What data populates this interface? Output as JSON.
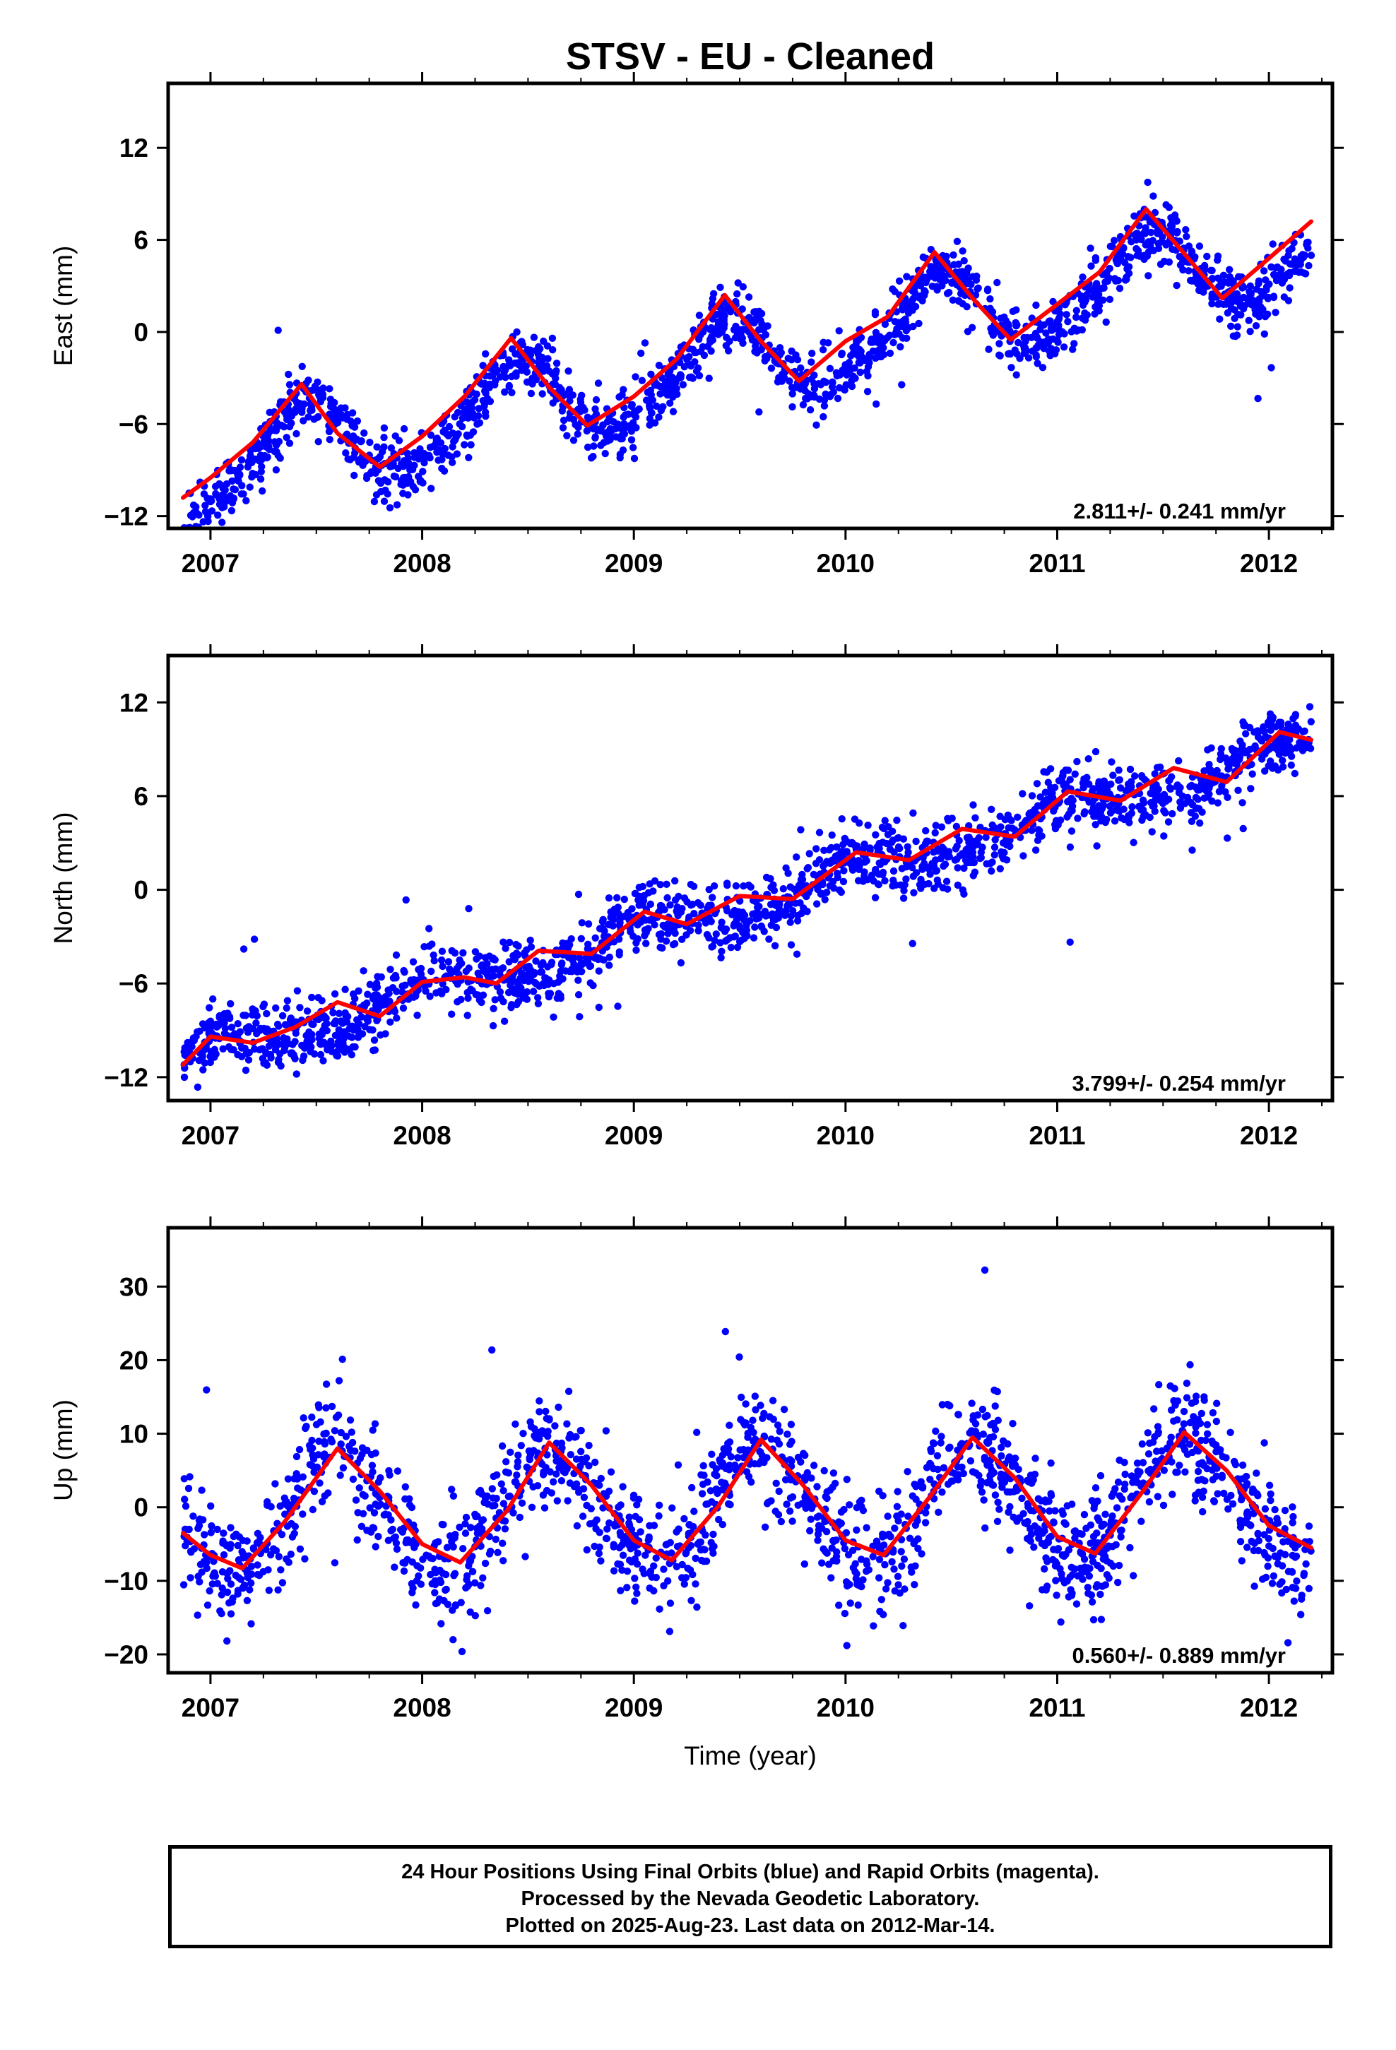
{
  "title": "STSV  - EU - Cleaned",
  "footer": {
    "line1": "24 Hour Positions Using Final Orbits (blue) and Rapid Orbits (magenta).",
    "line2": "Processed by the Nevada Geodetic Laboratory.",
    "line3": "Plotted on 2025-Aug-23. Last data on 2012-Mar-14."
  },
  "colors": {
    "points": "#0000ff",
    "fit": "#ff0000",
    "frame": "#000000"
  },
  "chart_data": [
    {
      "type": "scatter",
      "ylabel": "East (mm)",
      "xlabel": "",
      "xlim": [
        2006.8,
        2012.3
      ],
      "ylim": [
        -12.8,
        16.2
      ],
      "x_ticks": [
        2007,
        2008,
        2009,
        2010,
        2011,
        2012
      ],
      "y_ticks": [
        -12,
        -6,
        0,
        6,
        12
      ],
      "rate_label": "2.811+/- 0.241 mm/yr",
      "series": [
        {
          "kind": "points",
          "start": 2006.87,
          "end": 2012.2,
          "trend_mm_per_yr": 2.811,
          "offset_at_2010": -0.6,
          "annual_amp": 2.8,
          "annual_peak": 0.43,
          "semiannual_amp": 0.4,
          "scatter_sd": 1.0
        },
        {
          "kind": "fit",
          "x": [
            2006.87,
            2007.0,
            2007.2,
            2007.43,
            2007.6,
            2007.8,
            2008.0,
            2008.2,
            2008.42,
            2008.6,
            2008.78,
            2009.0,
            2009.2,
            2009.43,
            2009.6,
            2009.78,
            2010.0,
            2010.2,
            2010.42,
            2010.6,
            2010.78,
            2011.0,
            2011.2,
            2011.42,
            2011.6,
            2011.78,
            2012.0,
            2012.2
          ],
          "y": [
            -10.8,
            -9.5,
            -7.2,
            -3.4,
            -6.6,
            -8.8,
            -6.8,
            -4.2,
            -0.4,
            -3.6,
            -6.1,
            -4.2,
            -1.8,
            2.4,
            -0.6,
            -3.2,
            -0.6,
            1.0,
            5.2,
            2.2,
            -0.5,
            1.8,
            3.9,
            8.0,
            5.1,
            2.2,
            4.8,
            7.2
          ]
        }
      ]
    },
    {
      "type": "scatter",
      "ylabel": "North (mm)",
      "xlabel": "",
      "xlim": [
        2006.8,
        2012.3
      ],
      "ylim": [
        -13.5,
        15.0
      ],
      "x_ticks": [
        2007,
        2008,
        2009,
        2010,
        2011,
        2012
      ],
      "y_ticks": [
        -12,
        -6,
        0,
        6,
        12
      ],
      "rate_label": "3.799+/- 0.254 mm/yr",
      "series": [
        {
          "kind": "points",
          "start": 2006.87,
          "end": 2012.2,
          "trend_mm_per_yr": 3.799,
          "offset_at_2010": 0.9,
          "annual_amp": 0.9,
          "annual_peak": 0.05,
          "semiannual_amp": 0.2,
          "scatter_sd": 1.05
        },
        {
          "kind": "fit",
          "x": [
            2006.87,
            2007.0,
            2007.2,
            2007.4,
            2007.6,
            2007.8,
            2008.0,
            2008.2,
            2008.35,
            2008.55,
            2008.8,
            2009.05,
            2009.25,
            2009.5,
            2009.75,
            2010.05,
            2010.3,
            2010.55,
            2010.8,
            2011.05,
            2011.3,
            2011.55,
            2011.8,
            2012.05,
            2012.2
          ],
          "y": [
            -11.2,
            -9.4,
            -9.8,
            -8.8,
            -7.2,
            -8.1,
            -5.9,
            -5.6,
            -6.0,
            -3.9,
            -4.1,
            -1.4,
            -2.2,
            -0.4,
            -0.6,
            2.4,
            1.9,
            3.9,
            3.4,
            6.3,
            5.7,
            7.8,
            6.9,
            10.1,
            9.6
          ]
        }
      ]
    },
    {
      "type": "scatter",
      "ylabel": "Up (mm)",
      "xlabel": "Time (year)",
      "xlim": [
        2006.8,
        2012.3
      ],
      "ylim": [
        -22.5,
        38.0
      ],
      "x_ticks": [
        2007,
        2008,
        2009,
        2010,
        2011,
        2012
      ],
      "y_ticks": [
        -20,
        -10,
        0,
        10,
        20,
        30
      ],
      "rate_label": "0.560+/- 0.889 mm/yr",
      "series": [
        {
          "kind": "points",
          "start": 2006.87,
          "end": 2012.2,
          "trend_mm_per_yr": 0.56,
          "offset_at_2010": 0.5,
          "annual_amp": 8.0,
          "annual_peak": 0.6,
          "semiannual_amp": 0.8,
          "scatter_sd": 3.8
        },
        {
          "kind": "fit",
          "x": [
            2006.87,
            2007.0,
            2007.15,
            2007.35,
            2007.6,
            2007.8,
            2008.0,
            2008.18,
            2008.4,
            2008.6,
            2008.8,
            2009.0,
            2009.18,
            2009.4,
            2009.6,
            2009.8,
            2010.0,
            2010.18,
            2010.4,
            2010.6,
            2010.8,
            2011.0,
            2011.18,
            2011.4,
            2011.6,
            2011.8,
            2012.0,
            2012.2
          ],
          "y": [
            -3.5,
            -6.5,
            -8.3,
            -2.0,
            8.0,
            2.2,
            -5.0,
            -7.5,
            -0.5,
            8.8,
            3.0,
            -4.5,
            -7.2,
            0.2,
            9.2,
            3.0,
            -4.5,
            -6.5,
            1.5,
            9.5,
            4.0,
            -4.0,
            -6.3,
            2.0,
            10.2,
            5.0,
            -2.5,
            -5.5
          ]
        }
      ]
    }
  ]
}
